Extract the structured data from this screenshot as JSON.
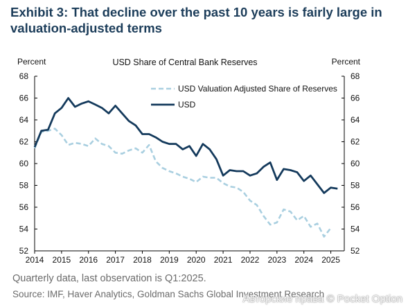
{
  "exhibit_title": "Exhibit 3: That decline over the past 10 years is fairly large in valuation-adjusted terms",
  "note": "Quarterly data, last observation is Q1:2025.",
  "source": "Source: IMF, Haver Analytics, Goldman Sachs Global Investment Research",
  "watermark": "Авторские права © Pocket Option",
  "colors": {
    "usd": "#143a5c",
    "adjusted": "#a9cfe0",
    "axis": "#000000"
  },
  "chart_data": {
    "type": "line",
    "title": "USD Share of Central Bank Reserves",
    "ylabel_left": "Percent",
    "ylabel_right": "Percent",
    "xlim": [
      2014,
      2025.5
    ],
    "ylim": [
      52,
      68
    ],
    "yticks": [
      52,
      54,
      56,
      58,
      60,
      62,
      64,
      66,
      68
    ],
    "xticks": [
      2014,
      2015,
      2016,
      2017,
      2018,
      2019,
      2020,
      2021,
      2022,
      2023,
      2024,
      2025
    ],
    "grid": false,
    "legend_position": "top-right",
    "series": [
      {
        "name": "USD Valuation Adjusted Share of Reserves",
        "style": "dashed",
        "x": [
          2014.0,
          2014.25,
          2014.5,
          2014.75,
          2015.0,
          2015.25,
          2015.5,
          2015.75,
          2016.0,
          2016.25,
          2016.5,
          2016.75,
          2017.0,
          2017.25,
          2017.5,
          2017.75,
          2018.0,
          2018.25,
          2018.5,
          2018.75,
          2019.0,
          2019.25,
          2019.5,
          2019.75,
          2020.0,
          2020.25,
          2020.5,
          2020.75,
          2021.0,
          2021.25,
          2021.5,
          2021.75,
          2022.0,
          2022.25,
          2022.5,
          2022.75,
          2023.0,
          2023.25,
          2023.5,
          2023.75,
          2024.0,
          2024.25,
          2024.5,
          2024.75,
          2025.0
        ],
        "values": [
          61.4,
          62.9,
          63.0,
          63.2,
          62.6,
          61.7,
          61.9,
          61.8,
          61.6,
          62.3,
          61.8,
          61.6,
          61.0,
          60.9,
          61.2,
          61.4,
          61.0,
          61.7,
          60.2,
          59.6,
          59.3,
          59.1,
          58.8,
          58.6,
          58.3,
          58.8,
          58.7,
          58.7,
          58.2,
          57.9,
          57.8,
          57.4,
          56.6,
          56.2,
          55.2,
          54.4,
          54.6,
          55.8,
          55.6,
          54.8,
          55.2,
          54.2,
          54.5,
          53.3,
          54.1
        ]
      },
      {
        "name": "USD",
        "style": "solid",
        "x": [
          2014.0,
          2014.25,
          2014.5,
          2014.75,
          2015.0,
          2015.25,
          2015.5,
          2015.75,
          2016.0,
          2016.25,
          2016.5,
          2016.75,
          2017.0,
          2017.25,
          2017.5,
          2017.75,
          2018.0,
          2018.25,
          2018.5,
          2018.75,
          2019.0,
          2019.25,
          2019.5,
          2019.75,
          2020.0,
          2020.25,
          2020.5,
          2020.75,
          2021.0,
          2021.25,
          2021.5,
          2021.75,
          2022.0,
          2022.25,
          2022.5,
          2022.75,
          2023.0,
          2023.25,
          2023.5,
          2023.75,
          2024.0,
          2024.25,
          2024.5,
          2024.75,
          2025.0,
          2025.25
        ],
        "values": [
          61.5,
          63.0,
          63.1,
          64.6,
          65.1,
          66.0,
          65.2,
          65.5,
          65.7,
          65.4,
          65.1,
          64.6,
          65.3,
          64.6,
          63.9,
          63.5,
          62.7,
          62.7,
          62.4,
          62.0,
          61.8,
          61.8,
          61.3,
          61.6,
          60.7,
          61.8,
          61.3,
          60.4,
          58.9,
          59.4,
          59.3,
          59.3,
          58.9,
          59.1,
          59.7,
          60.1,
          58.5,
          59.5,
          59.4,
          59.2,
          58.4,
          58.9,
          58.1,
          57.3,
          57.8,
          57.7
        ]
      }
    ]
  }
}
